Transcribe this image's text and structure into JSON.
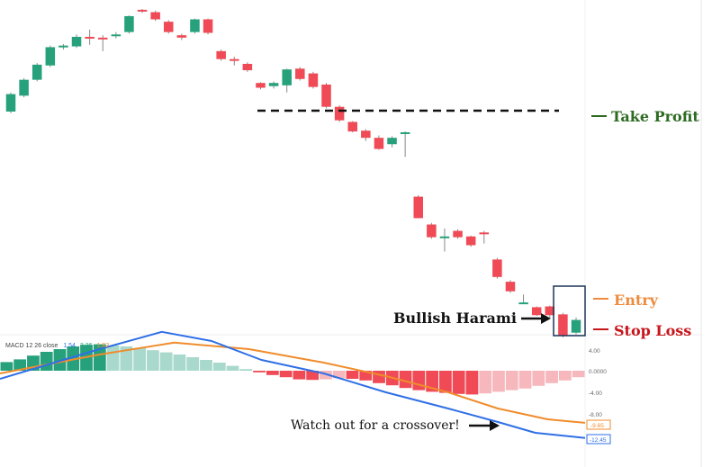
{
  "chart_data": [
    {
      "type": "candlestick",
      "title": "",
      "colors": {
        "up": "#26a17b",
        "down": "#ef4a55",
        "wick": "#888888"
      },
      "candles": [
        {
          "o": 112,
          "c": 134,
          "h": 136,
          "l": 110
        },
        {
          "o": 132,
          "c": 152,
          "h": 154,
          "l": 130
        },
        {
          "o": 152,
          "c": 171,
          "h": 173,
          "l": 150
        },
        {
          "o": 170,
          "c": 193,
          "h": 195,
          "l": 168
        },
        {
          "o": 193,
          "c": 195,
          "h": 197,
          "l": 190
        },
        {
          "o": 194,
          "c": 206,
          "h": 209,
          "l": 192
        },
        {
          "o": 206,
          "c": 205,
          "h": 215,
          "l": 196
        },
        {
          "o": 205,
          "c": 204,
          "h": 208,
          "l": 188
        },
        {
          "o": 207,
          "c": 209,
          "h": 212,
          "l": 204
        },
        {
          "o": 212,
          "c": 232,
          "h": 233,
          "l": 210
        },
        {
          "o": 240,
          "c": 238,
          "h": 241,
          "l": 236
        },
        {
          "o": 237,
          "c": 228,
          "h": 239,
          "l": 226
        },
        {
          "o": 225,
          "c": 212,
          "h": 227,
          "l": 210
        },
        {
          "o": 208,
          "c": 205,
          "h": 210,
          "l": 202
        },
        {
          "o": 212,
          "c": 228,
          "h": 229,
          "l": 210
        },
        {
          "o": 228,
          "c": 211,
          "h": 229,
          "l": 209
        },
        {
          "o": 188,
          "c": 178,
          "h": 190,
          "l": 176
        },
        {
          "o": 178,
          "c": 176,
          "h": 181,
          "l": 170
        },
        {
          "o": 172,
          "c": 164,
          "h": 174,
          "l": 162
        },
        {
          "o": 148,
          "c": 142,
          "h": 149,
          "l": 140
        },
        {
          "o": 144,
          "c": 148,
          "h": 150,
          "l": 141
        },
        {
          "o": 145,
          "c": 165,
          "h": 166,
          "l": 136
        },
        {
          "o": 166,
          "c": 153,
          "h": 168,
          "l": 151
        },
        {
          "o": 160,
          "c": 143,
          "h": 162,
          "l": 141
        },
        {
          "o": 146,
          "c": 118,
          "h": 148,
          "l": 116
        },
        {
          "o": 118,
          "c": 101,
          "h": 120,
          "l": 99
        },
        {
          "o": 99,
          "c": 87,
          "h": 100,
          "l": 86
        },
        {
          "o": 88,
          "c": 79,
          "h": 90,
          "l": 75
        },
        {
          "o": 79,
          "c": 65,
          "h": 82,
          "l": 64
        },
        {
          "o": 71,
          "c": 79,
          "h": 81,
          "l": 67
        },
        {
          "o": 84,
          "c": 86,
          "h": 87,
          "l": 55
        },
        {
          "o": 5,
          "c": -22,
          "h": 7,
          "l": -22
        },
        {
          "o": -30,
          "c": -46,
          "h": -28,
          "l": -48
        },
        {
          "o": -45,
          "c": -45,
          "h": -35,
          "l": -64
        },
        {
          "o": -38,
          "c": -46,
          "h": -36,
          "l": -48
        },
        {
          "o": -45,
          "c": -56,
          "h": -44,
          "l": -58
        },
        {
          "o": -40,
          "c": -42,
          "h": -38,
          "l": -54
        },
        {
          "o": -74,
          "c": -96,
          "h": -72,
          "l": -98
        },
        {
          "o": -102,
          "c": -114,
          "h": -100,
          "l": -116
        },
        {
          "o": -128,
          "c": -128,
          "h": -118,
          "l": -130
        },
        {
          "o": -134,
          "c": -144,
          "h": -133,
          "l": -145
        },
        {
          "o": -133,
          "c": -144,
          "h": -132,
          "l": -147
        },
        {
          "o": -143,
          "c": -170,
          "h": -141,
          "l": -172
        },
        {
          "o": -166,
          "c": -150,
          "h": -147,
          "l": -168
        }
      ],
      "annotations": {
        "take_profit": {
          "label": "Take Profit",
          "color": "#2e6b22"
        },
        "entry": {
          "label": "Entry",
          "color": "#ee8b3d"
        },
        "stop_loss": {
          "label": "Stop Loss",
          "color": "#c8161d"
        },
        "pattern_label": "Bullish Harami"
      }
    },
    {
      "type": "macd",
      "header": {
        "label": "MACD 12 26 close",
        "macd_value": "1.54",
        "signal_value": "3.36",
        "hist_value": "1.82",
        "macd_color": "#2f6fe6",
        "signal_color": "#f08c2c",
        "hist_color": "#f08c2c"
      },
      "histogram": [
        1.6,
        2.1,
        2.8,
        3.5,
        4.0,
        4.5,
        4.8,
        4.9,
        4.7,
        4.5,
        4.2,
        3.8,
        3.4,
        3.0,
        2.5,
        2.0,
        1.5,
        0.9,
        0.3,
        -0.3,
        -0.8,
        -1.2,
        -1.6,
        -1.7,
        -1.6,
        -1.4,
        -1.5,
        -1.8,
        -2.3,
        -2.7,
        -3.2,
        -3.6,
        -3.9,
        -4.1,
        -4.3,
        -4.4,
        -4.2,
        -3.9,
        -3.6,
        -3.3,
        -2.8,
        -2.3,
        -1.8,
        -1.2
      ],
      "hist_colors": {
        "pos_strong": "#26a17b",
        "pos_weak": "#a9d9cc",
        "neg_strong": "#ef4a55",
        "neg_weak": "#f6b8bd"
      },
      "macd_line": [
        [
          0,
          -1.5
        ],
        [
          8,
          4.0
        ],
        [
          13,
          7.2
        ],
        [
          17,
          5.5
        ],
        [
          21,
          2.0
        ],
        [
          26,
          -0.5
        ],
        [
          31,
          -4.0
        ],
        [
          36,
          -7.0
        ],
        [
          40,
          -9.5
        ],
        [
          43,
          -11.5
        ],
        [
          47,
          -12.45
        ]
      ],
      "signal_line": [
        [
          0,
          -0.5
        ],
        [
          8,
          3.0
        ],
        [
          14,
          5.2
        ],
        [
          20,
          4.0
        ],
        [
          26,
          1.5
        ],
        [
          31,
          -1.0
        ],
        [
          36,
          -4.0
        ],
        [
          40,
          -7.0
        ],
        [
          44,
          -9.0
        ],
        [
          47,
          -9.65
        ]
      ],
      "axis_ticks": [
        "4.00",
        "0.0000",
        "-4.00",
        "-8.00"
      ],
      "last_values": {
        "signal": "-9.65",
        "macd": "-12.45"
      },
      "note": "Watch out for a crossover!"
    }
  ]
}
